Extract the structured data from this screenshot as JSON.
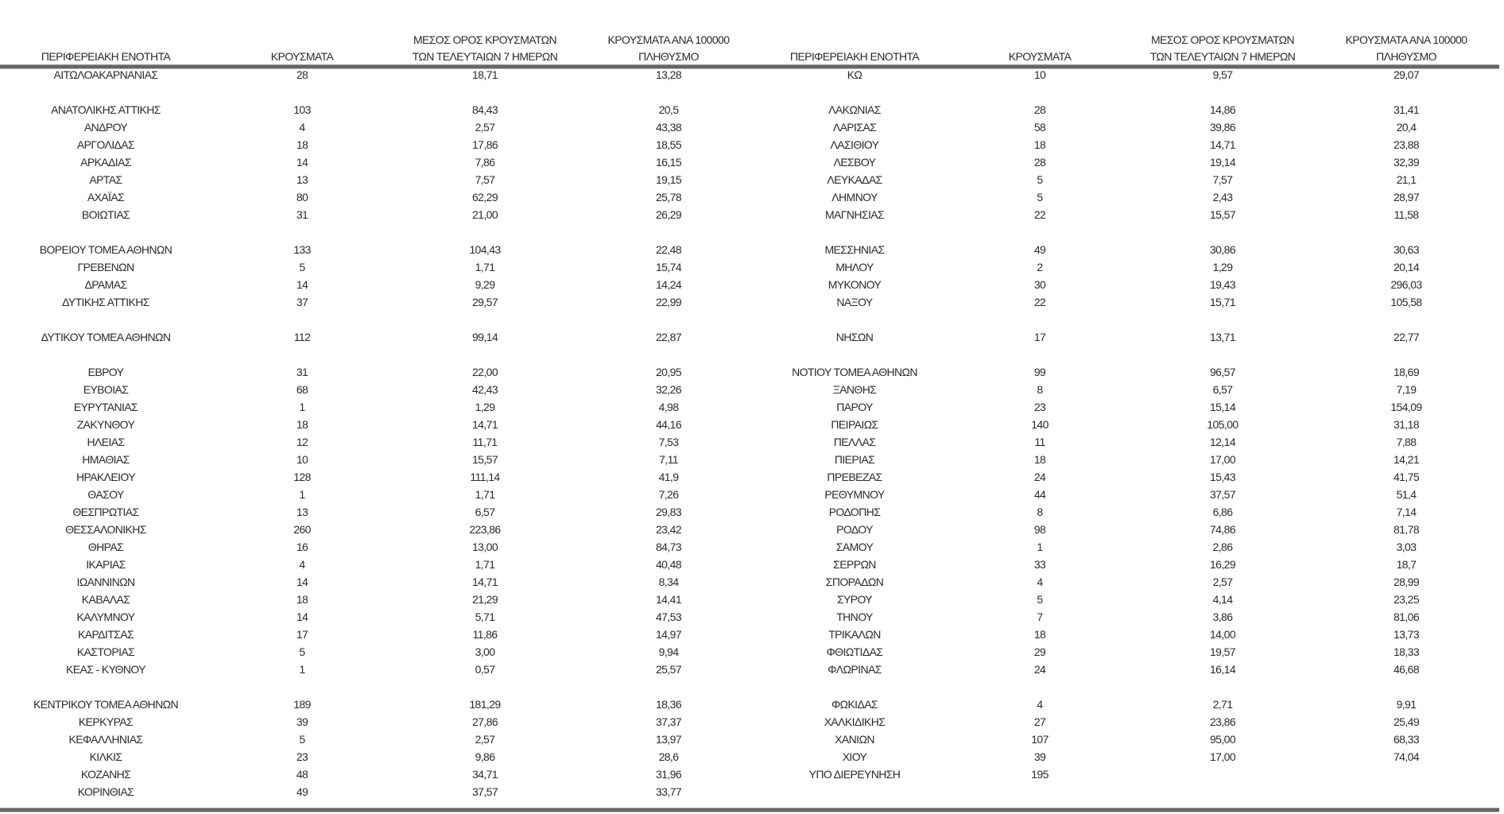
{
  "headers": {
    "region": "ΠΕΡΙΦΕΡΕΙΑΚΗ ΕΝΟΤΗΤΑ",
    "cases": "ΚΡΟΥΣΜΑΤΑ",
    "avg_line1": "ΜΕΣΟΣ ΟΡΟΣ ΚΡΟΥΣΜΑΤΩΝ",
    "avg_line2": "ΤΩΝ ΤΕΛΕΥΤΑΙΩΝ 7 ΗΜΕΡΩΝ",
    "per100k_line1": "ΚΡΟΥΣΜΑΤΑ ΑΝΑ 100000",
    "per100k_line2": "ΠΛΗΘΥΣΜΟ"
  },
  "left_rows": [
    [
      "ΑΙΤΩΛΟΑΚΑΡΝΑΝΙΑΣ",
      "28",
      "18,71",
      "13,28"
    ],
    null,
    [
      "ΑΝΑΤΟΛΙΚΗΣ ΑΤΤΙΚΗΣ",
      "103",
      "84,43",
      "20,5"
    ],
    [
      "ΑΝΔΡΟΥ",
      "4",
      "2,57",
      "43,38"
    ],
    [
      "ΑΡΓΟΛΙΔΑΣ",
      "18",
      "17,86",
      "18,55"
    ],
    [
      "ΑΡΚΑΔΙΑΣ",
      "14",
      "7,86",
      "16,15"
    ],
    [
      "ΑΡΤΑΣ",
      "13",
      "7,57",
      "19,15"
    ],
    [
      "ΑΧΑΪΑΣ",
      "80",
      "62,29",
      "25,78"
    ],
    [
      "ΒΟΙΩΤΙΑΣ",
      "31",
      "21,00",
      "26,29"
    ],
    null,
    [
      "ΒΟΡΕΙΟΥ ΤΟΜΕΑ ΑΘΗΝΩΝ",
      "133",
      "104,43",
      "22,48"
    ],
    [
      "ΓΡΕΒΕΝΩΝ",
      "5",
      "1,71",
      "15,74"
    ],
    [
      "ΔΡΑΜΑΣ",
      "14",
      "9,29",
      "14,24"
    ],
    [
      "ΔΥΤΙΚΗΣ ΑΤΤΙΚΗΣ",
      "37",
      "29,57",
      "22,99"
    ],
    null,
    [
      "ΔΥΤΙΚΟΥ ΤΟΜΕΑ ΑΘΗΝΩΝ",
      "112",
      "99,14",
      "22,87"
    ],
    null,
    [
      "ΕΒΡΟΥ",
      "31",
      "22,00",
      "20,95"
    ],
    [
      "ΕΥΒΟΙΑΣ",
      "68",
      "42,43",
      "32,26"
    ],
    [
      "ΕΥΡΥΤΑΝΙΑΣ",
      "1",
      "1,29",
      "4,98"
    ],
    [
      "ΖΑΚΥΝΘΟΥ",
      "18",
      "14,71",
      "44,16"
    ],
    [
      "ΗΛΕΙΑΣ",
      "12",
      "11,71",
      "7,53"
    ],
    [
      "ΗΜΑΘΙΑΣ",
      "10",
      "15,57",
      "7,11"
    ],
    [
      "ΗΡΑΚΛΕΙΟΥ",
      "128",
      "111,14",
      "41,9"
    ],
    [
      "ΘΑΣΟΥ",
      "1",
      "1,71",
      "7,26"
    ],
    [
      "ΘΕΣΠΡΩΤΙΑΣ",
      "13",
      "6,57",
      "29,83"
    ],
    [
      "ΘΕΣΣΑΛΟΝΙΚΗΣ",
      "260",
      "223,86",
      "23,42"
    ],
    [
      "ΘΗΡΑΣ",
      "16",
      "13,00",
      "84,73"
    ],
    [
      "ΙΚΑΡΙΑΣ",
      "4",
      "1,71",
      "40,48"
    ],
    [
      "ΙΩΑΝΝΙΝΩΝ",
      "14",
      "14,71",
      "8,34"
    ],
    [
      "ΚΑΒΑΛΑΣ",
      "18",
      "21,29",
      "14,41"
    ],
    [
      "ΚΑΛΥΜΝΟΥ",
      "14",
      "5,71",
      "47,53"
    ],
    [
      "ΚΑΡΔΙΤΣΑΣ",
      "17",
      "11,86",
      "14,97"
    ],
    [
      "ΚΑΣΤΟΡΙΑΣ",
      "5",
      "3,00",
      "9,94"
    ],
    [
      "ΚΕΑΣ - ΚΥΘΝΟΥ",
      "1",
      "0,57",
      "25,57"
    ],
    null,
    [
      "ΚΕΝΤΡΙΚΟΥ ΤΟΜΕΑ ΑΘΗΝΩΝ",
      "189",
      "181,29",
      "18,36"
    ],
    [
      "ΚΕΡΚΥΡΑΣ",
      "39",
      "27,86",
      "37,37"
    ],
    [
      "ΚΕΦΑΛΛΗΝΙΑΣ",
      "5",
      "2,57",
      "13,97"
    ],
    [
      "ΚΙΛΚΙΣ",
      "23",
      "9,86",
      "28,6"
    ],
    [
      "ΚΟΖΑΝΗΣ",
      "48",
      "34,71",
      "31,96"
    ],
    [
      "ΚΟΡΙΝΘΙΑΣ",
      "49",
      "37,57",
      "33,77"
    ]
  ],
  "right_rows": [
    [
      "ΚΩ",
      "10",
      "9,57",
      "29,07"
    ],
    null,
    [
      "ΛΑΚΩΝΙΑΣ",
      "28",
      "14,86",
      "31,41"
    ],
    [
      "ΛΑΡΙΣΑΣ",
      "58",
      "39,86",
      "20,4"
    ],
    [
      "ΛΑΣΙΘΙΟΥ",
      "18",
      "14,71",
      "23,88"
    ],
    [
      "ΛΕΣΒΟΥ",
      "28",
      "19,14",
      "32,39"
    ],
    [
      "ΛΕΥΚΑΔΑΣ",
      "5",
      "7,57",
      "21,1"
    ],
    [
      "ΛΗΜΝΟΥ",
      "5",
      "2,43",
      "28,97"
    ],
    [
      "ΜΑΓΝΗΣΙΑΣ",
      "22",
      "15,57",
      "11,58"
    ],
    null,
    [
      "ΜΕΣΣΗΝΙΑΣ",
      "49",
      "30,86",
      "30,63"
    ],
    [
      "ΜΗΛΟΥ",
      "2",
      "1,29",
      "20,14"
    ],
    [
      "ΜΥΚΟΝΟΥ",
      "30",
      "19,43",
      "296,03"
    ],
    [
      "ΝΑΞΟΥ",
      "22",
      "15,71",
      "105,58"
    ],
    null,
    [
      "ΝΗΣΩΝ",
      "17",
      "13,71",
      "22,77"
    ],
    null,
    [
      "ΝΟΤΙΟΥ ΤΟΜΕΑ ΑΘΗΝΩΝ",
      "99",
      "96,57",
      "18,69"
    ],
    [
      "ΞΑΝΘΗΣ",
      "8",
      "6,57",
      "7,19"
    ],
    [
      "ΠΑΡΟΥ",
      "23",
      "15,14",
      "154,09"
    ],
    [
      "ΠΕΙΡΑΙΩΣ",
      "140",
      "105,00",
      "31,18"
    ],
    [
      "ΠΕΛΛΑΣ",
      "11",
      "12,14",
      "7,88"
    ],
    [
      "ΠΙΕΡΙΑΣ",
      "18",
      "17,00",
      "14,21"
    ],
    [
      "ΠΡΕΒΕΖΑΣ",
      "24",
      "15,43",
      "41,75"
    ],
    [
      "ΡΕΘΥΜΝΟΥ",
      "44",
      "37,57",
      "51,4"
    ],
    [
      "ΡΟΔΟΠΗΣ",
      "8",
      "6,86",
      "7,14"
    ],
    [
      "ΡΟΔΟΥ",
      "98",
      "74,86",
      "81,78"
    ],
    [
      "ΣΑΜΟΥ",
      "1",
      "2,86",
      "3,03"
    ],
    [
      "ΣΕΡΡΩΝ",
      "33",
      "16,29",
      "18,7"
    ],
    [
      "ΣΠΟΡΑΔΩΝ",
      "4",
      "2,57",
      "28,99"
    ],
    [
      "ΣΥΡΟΥ",
      "5",
      "4,14",
      "23,25"
    ],
    [
      "ΤΗΝΟΥ",
      "7",
      "3,86",
      "81,06"
    ],
    [
      "ΤΡΙΚΑΛΩΝ",
      "18",
      "14,00",
      "13,73"
    ],
    [
      "ΦΘΙΩΤΙΔΑΣ",
      "29",
      "19,57",
      "18,33"
    ],
    [
      "ΦΛΩΡΙΝΑΣ",
      "24",
      "16,14",
      "46,68"
    ],
    null,
    [
      "ΦΩΚΙΔΑΣ",
      "4",
      "2,71",
      "9,91"
    ],
    [
      "ΧΑΛΚΙΔΙΚΗΣ",
      "27",
      "23,86",
      "25,49"
    ],
    [
      "ΧΑΝΙΩΝ",
      "107",
      "95,00",
      "68,33"
    ],
    [
      "ΧΙΟΥ",
      "39",
      "17,00",
      "74,04"
    ],
    [
      "ΥΠΟ ΔΙΕΡΕΥΝΗΣΗ",
      "195",
      "",
      ""
    ]
  ]
}
